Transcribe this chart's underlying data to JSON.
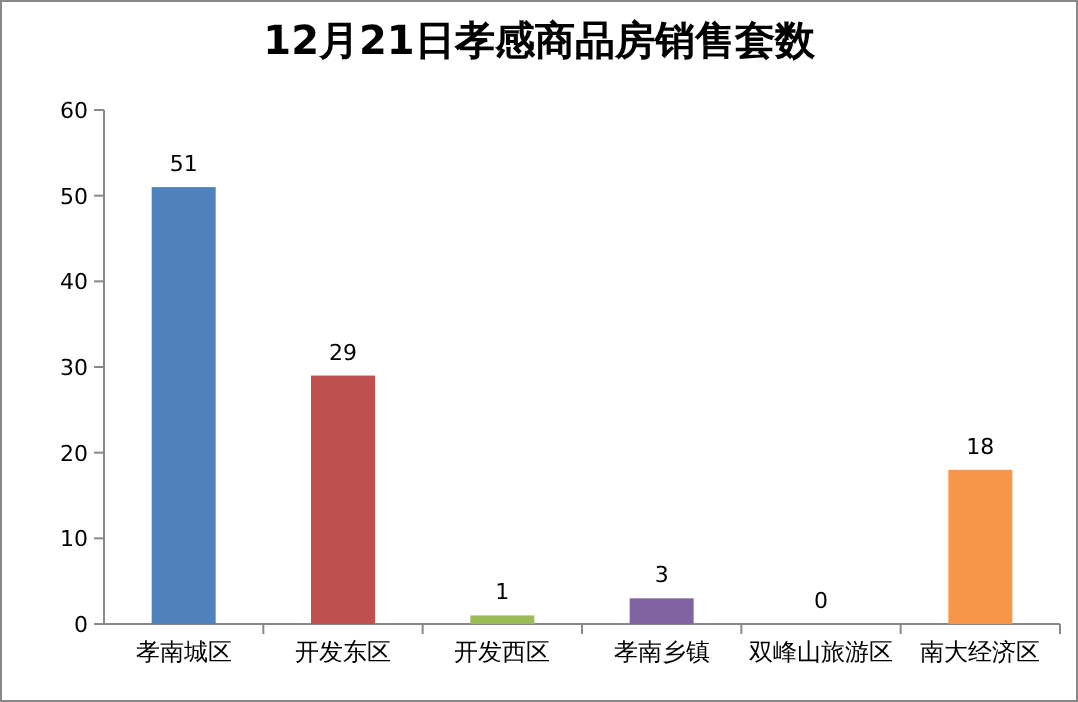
{
  "chart_data": {
    "type": "bar",
    "title": "12月21日孝感商品房销售套数",
    "categories": [
      "孝南城区",
      "开发东区",
      "开发西区",
      "孝南乡镇",
      "双峰山旅游区",
      "南大经济区"
    ],
    "values": [
      51,
      29,
      1,
      3,
      0,
      18
    ],
    "colors": [
      "#4f81bd",
      "#c0504d",
      "#9bbb59",
      "#8064a2",
      "#4bacc6",
      "#f79646"
    ],
    "ylim": [
      0,
      60
    ],
    "yticks": [
      0,
      10,
      20,
      30,
      40,
      50,
      60
    ],
    "data_labels": true
  }
}
